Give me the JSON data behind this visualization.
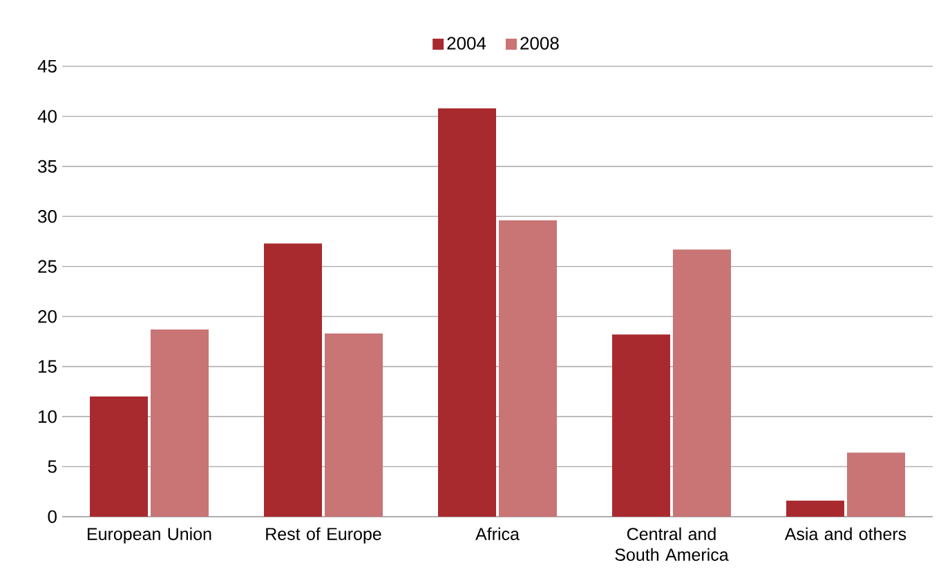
{
  "chart_data": {
    "type": "bar",
    "categories": [
      "European Union",
      "Rest of Europe",
      "Africa",
      "Central and South America",
      "Asia and others"
    ],
    "series": [
      {
        "name": "2004",
        "color": "#a82a2e",
        "values": [
          12,
          27.3,
          40.8,
          18.2,
          1.6
        ]
      },
      {
        "name": "2008",
        "color": "#c97475",
        "values": [
          18.7,
          18.3,
          29.6,
          26.7,
          6.4
        ]
      }
    ],
    "ylim": [
      0,
      45
    ],
    "yticks": [
      0,
      5,
      10,
      15,
      20,
      25,
      30,
      35,
      40,
      45
    ],
    "grid": "y",
    "legend": "top"
  }
}
